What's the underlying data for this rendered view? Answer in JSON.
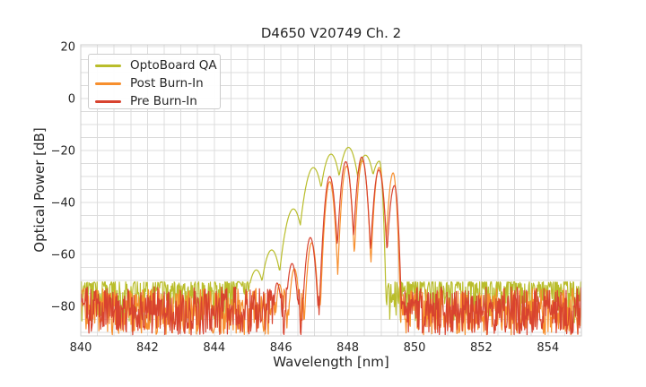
{
  "chart_data": {
    "type": "line",
    "title": "D4650 V20749 Ch. 2",
    "xlabel": "Wavelength [nm]",
    "ylabel": "Optical Power [dB]",
    "xlim": [
      840,
      855
    ],
    "ylim": [
      -91.4,
      20.7
    ],
    "x_major_ticks": [
      840,
      842,
      844,
      846,
      848,
      850,
      852,
      854
    ],
    "x_minor_step_nm": 0.5,
    "y_major_ticks": [
      20,
      0,
      -20,
      -40,
      -60,
      -80
    ],
    "y_minor_step_db": 5,
    "grid": true,
    "grid_color": "#dcdcdc",
    "spine_color": "#cccccc",
    "text_color": "#262626",
    "legend_position": "upper left",
    "sample_step_nm": 0.0175,
    "series": [
      {
        "name": "OptoBoard QA",
        "color": "#b9bd2b",
        "seed": 7,
        "curvature": 145,
        "edge_curvature": 1400,
        "noise": {
          "band_top_db": -70.6,
          "band_depth_db": 16,
          "shape": 2.6
        },
        "modes": [
          {
            "nm": 844.72,
            "db": -70.5
          },
          {
            "nm": 845.26,
            "db": -66.0
          },
          {
            "nm": 845.72,
            "db": -58.3
          },
          {
            "nm": 846.37,
            "db": -42.5
          },
          {
            "nm": 846.97,
            "db": -26.6
          },
          {
            "nm": 847.5,
            "db": -21.4
          },
          {
            "nm": 848.02,
            "db": -18.8
          },
          {
            "nm": 848.53,
            "db": -21.8
          },
          {
            "nm": 848.95,
            "db": -24.1
          }
        ]
      },
      {
        "name": "Post Burn-In",
        "color": "#f78f2e",
        "seed": 13,
        "curvature": 620,
        "edge_curvature": 1100,
        "noise": {
          "band_top_db": -73.0,
          "band_depth_db": 18,
          "shape": 1.0
        },
        "modes": [
          {
            "nm": 845.95,
            "db": -71.5
          },
          {
            "nm": 846.4,
            "db": -65.5
          },
          {
            "nm": 846.92,
            "db": -55.5
          },
          {
            "nm": 847.46,
            "db": -32.0
          },
          {
            "nm": 847.96,
            "db": -26.0
          },
          {
            "nm": 848.44,
            "db": -24.0
          },
          {
            "nm": 848.94,
            "db": -26.5
          },
          {
            "nm": 849.36,
            "db": -28.6
          }
        ]
      },
      {
        "name": "Pre Burn-In",
        "color": "#d8432f",
        "seed": 29,
        "curvature": 520,
        "edge_curvature": 1100,
        "noise": {
          "band_top_db": -72.5,
          "band_depth_db": 18.5,
          "shape": 1.0
        },
        "modes": [
          {
            "nm": 845.88,
            "db": -71.0
          },
          {
            "nm": 846.33,
            "db": -63.5
          },
          {
            "nm": 846.88,
            "db": -53.5
          },
          {
            "nm": 847.46,
            "db": -30.0
          },
          {
            "nm": 847.94,
            "db": -24.3
          },
          {
            "nm": 848.42,
            "db": -22.5
          },
          {
            "nm": 848.93,
            "db": -27.5
          },
          {
            "nm": 849.4,
            "db": -33.5
          }
        ]
      }
    ]
  }
}
